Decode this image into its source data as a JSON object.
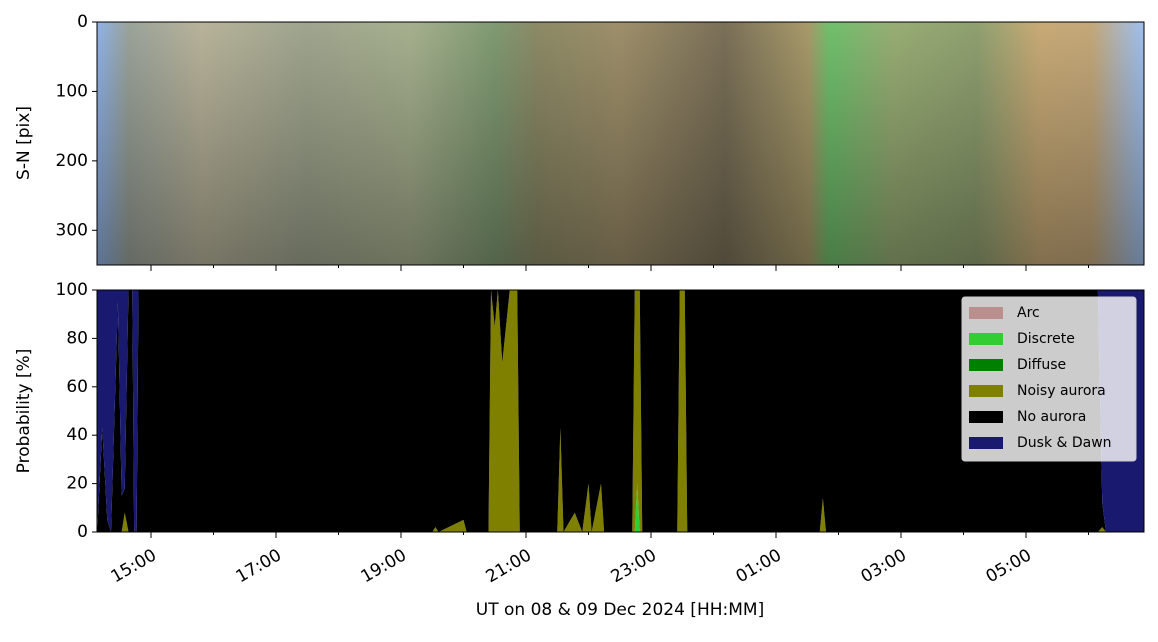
{
  "chart_data": [
    {
      "type": "image",
      "ylabel": "S-N [pix]",
      "ylim": [
        350,
        0
      ],
      "yticks": [
        0,
        100,
        200,
        300
      ]
    },
    {
      "type": "stacked_area",
      "ylabel": "Probability [%]",
      "xlabel": "UT on 08 & 09 Dec 2024 [HH:MM]",
      "xlim": [
        14.136,
        30.888
      ],
      "xticks": [
        {
          "value": 15,
          "label": "15:00"
        },
        {
          "value": 17,
          "label": "17:00"
        },
        {
          "value": 19,
          "label": "19:00"
        },
        {
          "value": 21,
          "label": "21:00"
        },
        {
          "value": 23,
          "label": "23:00"
        },
        {
          "value": 25,
          "label": "01:00"
        },
        {
          "value": 27,
          "label": "03:00"
        },
        {
          "value": 29,
          "label": "05:00"
        }
      ],
      "xminorticks": [
        16,
        18,
        20,
        22,
        24,
        26,
        28,
        30
      ],
      "ylim": [
        0,
        100
      ],
      "yticks": [
        0,
        20,
        40,
        60,
        80,
        100
      ],
      "legend": "upper right",
      "x": [
        14.14,
        14.22,
        14.3,
        14.36,
        14.47,
        14.53,
        14.58,
        14.64,
        14.7,
        14.73,
        14.77,
        14.8,
        19.5,
        19.55,
        19.6,
        20.0,
        20.05,
        20.4,
        20.44,
        20.5,
        20.55,
        20.62,
        20.7,
        20.74,
        20.86,
        20.9,
        21.5,
        21.55,
        21.6,
        21.78,
        21.9,
        22.0,
        22.05,
        22.2,
        22.25,
        22.7,
        22.74,
        22.78,
        22.82,
        22.86,
        23.42,
        23.46,
        23.54,
        23.58,
        25.7,
        25.75,
        25.8,
        30.15,
        30.22,
        30.28,
        30.89
      ],
      "series": [
        {
          "name": "Arc",
          "color": "#bc8f8f",
          "values": [
            0,
            0,
            0,
            0,
            0,
            0,
            0,
            0,
            0,
            0,
            0,
            0,
            0,
            0,
            0,
            0,
            0,
            0,
            0,
            0,
            0,
            0,
            0,
            0,
            0,
            0,
            0,
            0,
            0,
            0,
            0,
            0,
            0,
            0,
            0,
            0,
            0,
            0,
            0,
            0,
            0,
            0,
            0,
            0,
            0,
            0,
            0,
            0,
            0,
            0,
            0
          ]
        },
        {
          "name": "Discrete",
          "color": "#32cd32",
          "values": [
            0,
            0,
            0,
            0,
            0,
            0,
            0,
            0,
            0,
            0,
            0,
            0,
            0,
            0,
            0,
            0,
            0,
            0,
            0,
            0,
            0,
            0,
            0,
            0,
            0,
            0,
            0,
            0,
            0,
            0,
            0,
            0,
            0,
            0,
            0,
            0,
            0,
            20,
            0,
            0,
            0,
            0,
            0,
            0,
            0,
            0,
            0,
            0,
            0,
            0,
            0
          ]
        },
        {
          "name": "Diffuse",
          "color": "#008000",
          "values": [
            0,
            0,
            0,
            0,
            0,
            0,
            0,
            0,
            0,
            0,
            0,
            0,
            0,
            0,
            0,
            0,
            0,
            0,
            0,
            0,
            0,
            0,
            0,
            0,
            0,
            0,
            0,
            0,
            0,
            0,
            0,
            0,
            0,
            0,
            0,
            0,
            0,
            0,
            0,
            0,
            0,
            0,
            0,
            0,
            0,
            0,
            0,
            0,
            0,
            0,
            0
          ]
        },
        {
          "name": "Noisy aurora",
          "color": "#808000",
          "values": [
            0,
            0,
            0,
            0,
            0,
            0,
            8,
            0,
            0,
            0,
            0,
            0,
            0,
            2,
            0,
            5,
            0,
            0,
            100,
            85,
            100,
            70,
            90,
            100,
            100,
            0,
            0,
            43,
            0,
            8,
            0,
            20,
            0,
            20,
            0,
            0,
            100,
            80,
            100,
            0,
            0,
            100,
            100,
            0,
            0,
            14,
            0,
            0,
            2,
            0,
            0
          ]
        },
        {
          "name": "No aurora",
          "color": "#000000",
          "values": [
            0,
            43,
            5,
            0,
            95,
            15,
            10,
            100,
            100,
            0,
            0,
            100,
            100,
            98,
            100,
            95,
            100,
            100,
            0,
            15,
            0,
            30,
            10,
            0,
            0,
            100,
            100,
            57,
            100,
            92,
            100,
            80,
            100,
            80,
            100,
            100,
            0,
            0,
            0,
            100,
            100,
            0,
            0,
            100,
            100,
            86,
            100,
            100,
            10,
            0,
            0
          ]
        },
        {
          "name": "Dusk & Dawn",
          "color": "#191970",
          "values": [
            100,
            57,
            95,
            100,
            5,
            85,
            82,
            0,
            0,
            100,
            100,
            0,
            0,
            0,
            0,
            0,
            0,
            0,
            0,
            0,
            0,
            0,
            0,
            0,
            0,
            0,
            0,
            0,
            0,
            0,
            0,
            0,
            0,
            0,
            0,
            0,
            0,
            0,
            0,
            0,
            0,
            0,
            0,
            0,
            0,
            0,
            0,
            0,
            88,
            100,
            100
          ]
        }
      ]
    }
  ]
}
